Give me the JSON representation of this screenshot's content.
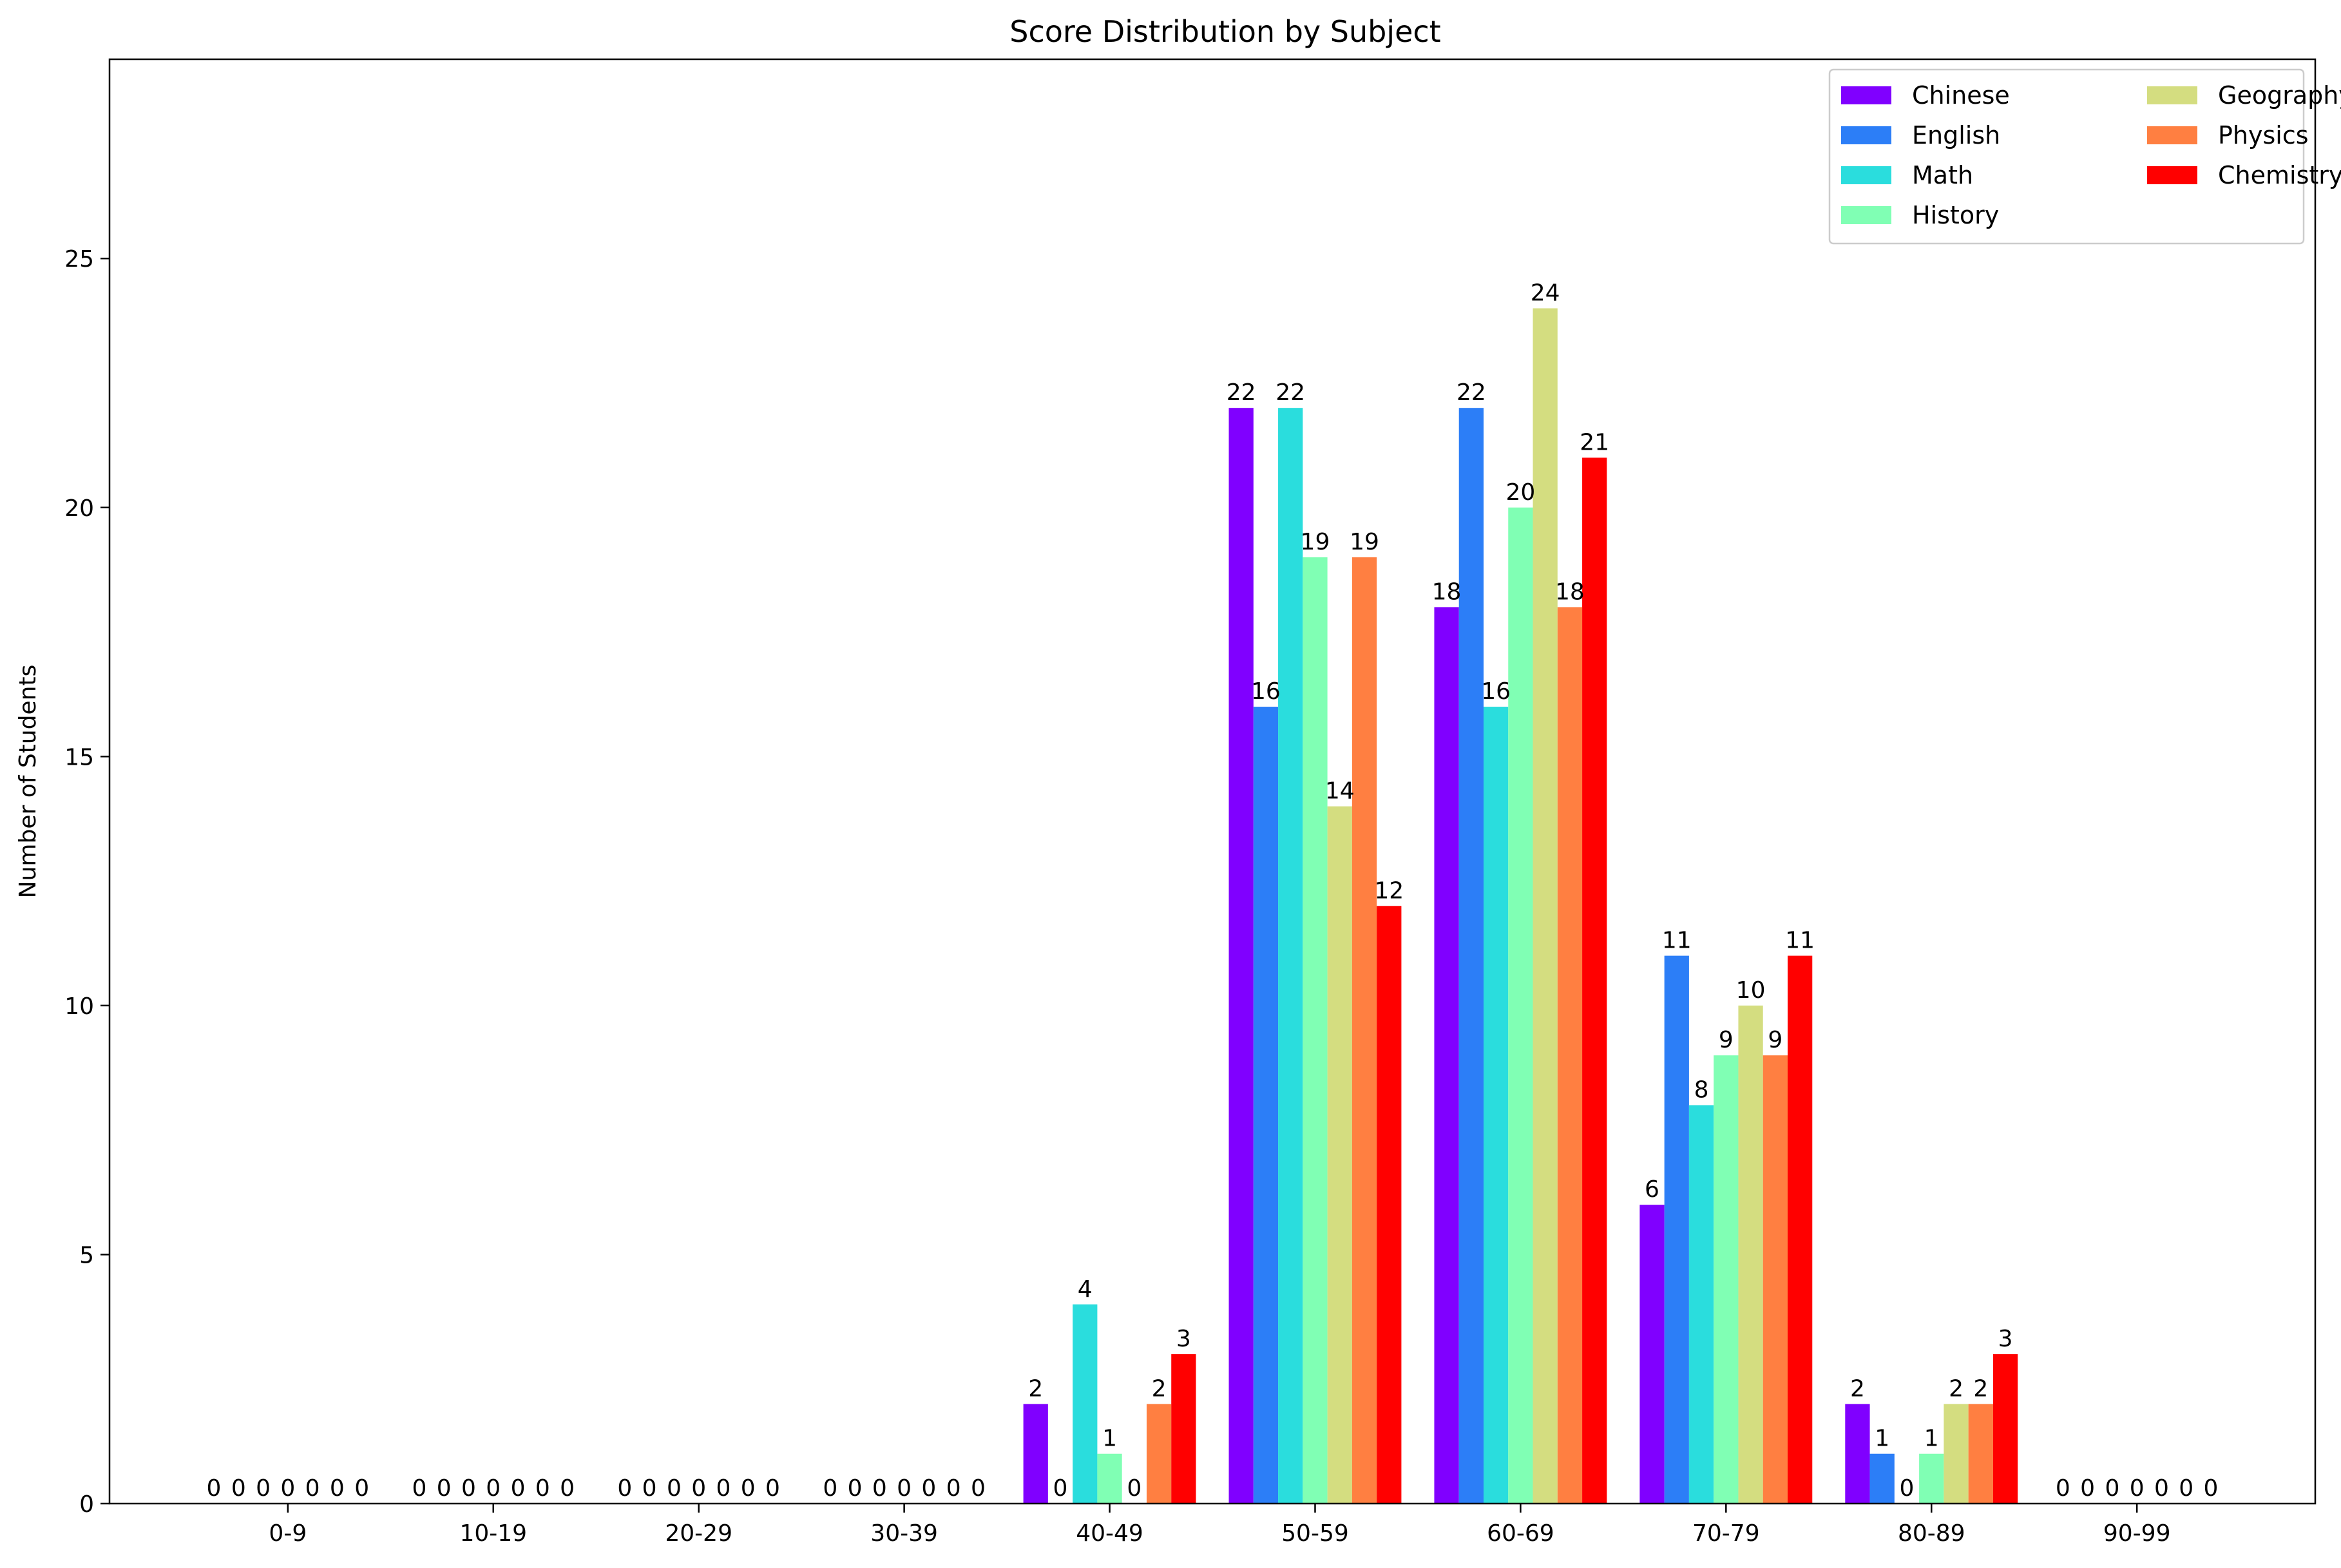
{
  "chart_data": {
    "type": "bar",
    "title": "Score Distribution by Subject",
    "xlabel": "",
    "ylabel": "Number of Students",
    "categories": [
      "0-9",
      "10-19",
      "20-29",
      "30-39",
      "40-49",
      "50-59",
      "60-69",
      "70-79",
      "80-89",
      "90-99"
    ],
    "ylim": [
      0,
      29
    ],
    "yticks": [
      0,
      5,
      10,
      15,
      20,
      25
    ],
    "grid": false,
    "legend_position": "top-right",
    "legend_columns": 2,
    "series": [
      {
        "name": "Chinese",
        "color": "#8000ff",
        "values": [
          0,
          0,
          0,
          0,
          2,
          22,
          18,
          6,
          2,
          0
        ]
      },
      {
        "name": "English",
        "color": "#2c7ef7",
        "values": [
          0,
          0,
          0,
          0,
          0,
          16,
          22,
          11,
          1,
          0
        ]
      },
      {
        "name": "Math",
        "color": "#2adddd",
        "values": [
          0,
          0,
          0,
          0,
          4,
          22,
          16,
          8,
          0,
          0
        ]
      },
      {
        "name": "History",
        "color": "#80ffb4",
        "values": [
          0,
          0,
          0,
          0,
          1,
          19,
          20,
          9,
          1,
          0
        ]
      },
      {
        "name": "Geography",
        "color": "#d4dd80",
        "values": [
          0,
          0,
          0,
          0,
          0,
          14,
          24,
          10,
          2,
          0
        ]
      },
      {
        "name": "Physics",
        "color": "#ff7f41",
        "values": [
          0,
          0,
          0,
          0,
          2,
          19,
          18,
          9,
          2,
          0
        ]
      },
      {
        "name": "Chemistry",
        "color": "#ff0000",
        "values": [
          0,
          0,
          0,
          0,
          3,
          12,
          21,
          11,
          3,
          0
        ]
      }
    ]
  }
}
